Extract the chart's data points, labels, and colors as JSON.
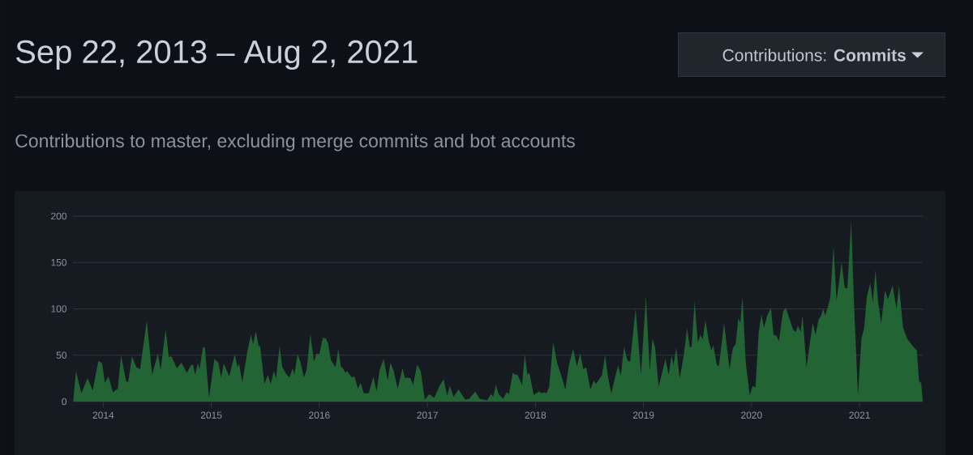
{
  "chart_data": {
    "type": "area",
    "title": "Sep 22, 2013 – Aug 2, 2021",
    "subtitle": "Contributions to master, excluding merge commits and bot accounts",
    "annotations": [
      "Contributions: **Commits**"
    ],
    "color": "#236434",
    "grid": "y",
    "xlim": [
      2013.72,
      2021.585
    ],
    "xticks": [
      2014,
      2015,
      2016,
      2017,
      2018,
      2019,
      2020,
      2021
    ],
    "ylim": [
      0,
      200
    ],
    "yticks": [
      0,
      50,
      100,
      150,
      200
    ],
    "x": [
      2013.723,
      2013.748,
      2013.798,
      2013.855,
      2013.903,
      2013.955,
      2013.99,
      2014.015,
      2014.048,
      2014.09,
      2014.135,
      2014.165,
      2014.211,
      2014.231,
      2014.266,
      2014.306,
      2014.341,
      2014.403,
      2014.453,
      2014.506,
      2014.531,
      2014.578,
      2014.606,
      2014.631,
      2014.681,
      2014.724,
      2014.774,
      2014.811,
      2014.831,
      2014.851,
      2014.876,
      2014.891,
      2014.924,
      2014.941,
      2014.979,
      2015.029,
      2015.066,
      2015.091,
      2015.116,
      2015.166,
      2015.217,
      2015.242,
      2015.257,
      2015.287,
      2015.337,
      2015.367,
      2015.387,
      2015.412,
      2015.437,
      2015.452,
      2015.492,
      2015.524,
      2015.549,
      2015.579,
      2015.599,
      2015.632,
      2015.657,
      2015.692,
      2015.724,
      2015.754,
      2015.769,
      2015.799,
      2015.824,
      2015.857,
      2015.882,
      2015.917,
      2015.95,
      2015.975,
      2016.0,
      2016.032,
      2016.062,
      2016.082,
      2016.107,
      2016.15,
      2016.175,
      2016.2,
      2016.217,
      2016.242,
      2016.257,
      2016.3,
      2016.325,
      2016.357,
      2016.382,
      2016.412,
      2016.458,
      2016.5,
      2016.53,
      2016.558,
      2016.595,
      2016.633,
      2016.658,
      2016.688,
      2016.725,
      2016.77,
      2016.793,
      2016.813,
      2016.843,
      2016.868,
      2016.905,
      2016.938,
      2016.976,
      2017.018,
      2017.063,
      2017.113,
      2017.151,
      2017.183,
      2017.208,
      2017.243,
      2017.288,
      2017.351,
      2017.388,
      2017.443,
      2017.484,
      2017.526,
      2017.551,
      2017.589,
      2017.609,
      2017.634,
      2017.659,
      2017.701,
      2017.734,
      2017.756,
      2017.789,
      2017.814,
      2017.834,
      2017.876,
      2017.901,
      2017.926,
      2017.944,
      2017.984,
      2018.034,
      2018.059,
      2018.077,
      2018.102,
      2018.127,
      2018.164,
      2018.202,
      2018.234,
      2018.277,
      2018.309,
      2018.349,
      2018.384,
      2018.414,
      2018.444,
      2018.469,
      2018.509,
      2018.54,
      2018.56,
      2018.595,
      2018.615,
      2018.645,
      2018.67,
      2018.702,
      2018.735,
      2018.765,
      2018.79,
      2018.82,
      2018.852,
      2018.877,
      2018.927,
      2018.977,
      2019.023,
      2019.058,
      2019.083,
      2019.108,
      2019.14,
      2019.17,
      2019.203,
      2019.233,
      2019.26,
      2019.278,
      2019.303,
      2019.335,
      2019.365,
      2019.385,
      2019.403,
      2019.428,
      2019.445,
      2019.473,
      2019.503,
      2019.528,
      2019.548,
      2019.573,
      2019.603,
      2019.628,
      2019.646,
      2019.678,
      2019.698,
      2019.746,
      2019.796,
      2019.828,
      2019.853,
      2019.878,
      2019.896,
      2019.916,
      2019.946,
      2019.983,
      2020.011,
      2020.036,
      2020.066,
      2020.091,
      2020.116,
      2020.146,
      2020.179,
      2020.204,
      2020.229,
      2020.254,
      2020.291,
      2020.316,
      2020.346,
      2020.386,
      2020.411,
      2020.429,
      2020.454,
      2020.472,
      2020.509,
      2020.542,
      2020.567,
      2020.592,
      2020.622,
      2020.642,
      2020.662,
      2020.682,
      2020.704,
      2020.729,
      2020.759,
      2020.787,
      2020.834,
      2020.862,
      2020.887,
      2020.922,
      2020.947,
      2020.985,
      2021.017,
      2021.042,
      2021.067,
      2021.1,
      2021.122,
      2021.147,
      2021.172,
      2021.2,
      2021.235,
      2021.262,
      2021.305,
      2021.342,
      2021.365,
      2021.402,
      2021.44,
      2021.49,
      2021.53,
      2021.55,
      2021.57,
      2021.585
    ],
    "values": [
      2,
      33,
      9,
      25,
      12,
      44,
      41,
      20,
      27,
      10,
      14,
      50,
      22,
      21,
      49,
      37,
      35,
      87,
      29,
      52,
      34,
      78,
      48,
      49,
      36,
      42,
      31,
      39,
      40,
      29,
      42,
      35,
      59,
      58,
      4,
      46,
      42,
      26,
      41,
      27,
      51,
      37,
      41,
      21,
      56,
      72,
      62,
      76,
      60,
      60,
      19,
      29,
      19,
      33,
      25,
      60,
      37,
      30,
      26,
      36,
      29,
      51,
      43,
      26,
      34,
      73,
      43,
      52,
      51,
      69,
      68,
      62,
      45,
      37,
      57,
      38,
      36,
      31,
      33,
      26,
      27,
      14,
      20,
      9,
      9,
      27,
      11,
      34,
      46,
      23,
      42,
      33,
      14,
      36,
      25,
      26,
      25,
      18,
      40,
      33,
      2,
      8,
      4,
      17,
      24,
      6,
      17,
      5,
      13,
      2,
      3,
      11,
      3,
      2,
      1,
      8,
      5,
      18,
      8,
      3,
      10,
      8,
      31,
      29,
      29,
      18,
      51,
      29,
      31,
      7,
      11,
      9,
      10,
      9,
      16,
      64,
      41,
      30,
      13,
      39,
      57,
      38,
      52,
      35,
      37,
      13,
      23,
      19,
      25,
      28,
      50,
      28,
      9,
      25,
      39,
      28,
      59,
      44,
      43,
      100,
      30,
      114,
      33,
      68,
      58,
      16,
      30,
      46,
      29,
      50,
      39,
      58,
      25,
      44,
      61,
      79,
      59,
      59,
      108,
      64,
      72,
      67,
      88,
      66,
      55,
      61,
      40,
      38,
      85,
      35,
      58,
      62,
      90,
      85,
      113,
      43,
      7,
      17,
      15,
      74,
      94,
      80,
      93,
      101,
      72,
      71,
      65,
      97,
      101,
      91,
      77,
      75,
      82,
      75,
      93,
      37,
      65,
      85,
      72,
      89,
      92,
      100,
      93,
      101,
      112,
      168,
      109,
      150,
      123,
      122,
      195,
      110,
      7,
      68,
      79,
      113,
      128,
      107,
      142,
      107,
      84,
      120,
      110,
      125,
      100,
      125,
      80,
      68,
      60,
      55,
      22,
      20,
      0
    ]
  }
}
